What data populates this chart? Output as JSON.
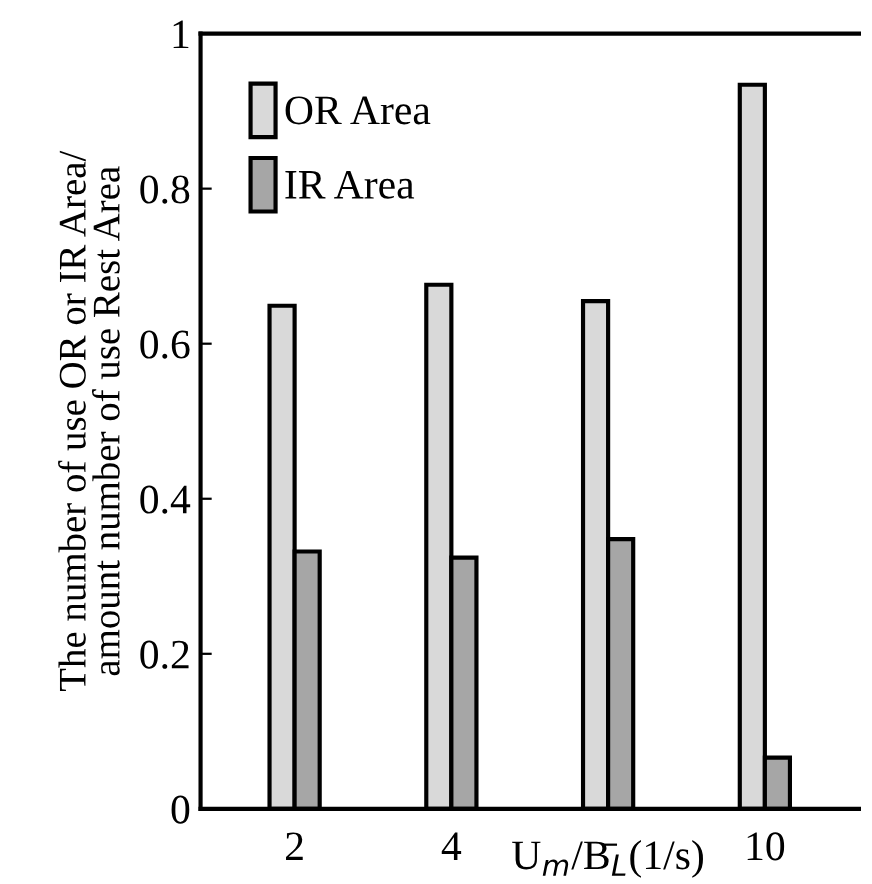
{
  "chart_data": {
    "type": "bar",
    "ylabel": "The number of use OR or IR Area/\namount number of use Rest Area",
    "xlabel": "U$_{m}$/B̄$_{L}$(1/s)",
    "categories": [
      "2",
      "4",
      null,
      "10"
    ],
    "series": [
      {
        "name": "OR Area",
        "color": "#d9d9d9",
        "values": [
          0.649,
          0.676,
          0.655,
          0.934
        ]
      },
      {
        "name": "IR Area",
        "color": "#a6a6a6",
        "values": [
          0.332,
          0.324,
          0.348,
          0.066
        ]
      }
    ],
    "ylim": [
      0,
      1
    ],
    "yticks": [
      0,
      0.2,
      0.4,
      0.6,
      0.8,
      1
    ],
    "grid": false,
    "legend": "top left"
  }
}
